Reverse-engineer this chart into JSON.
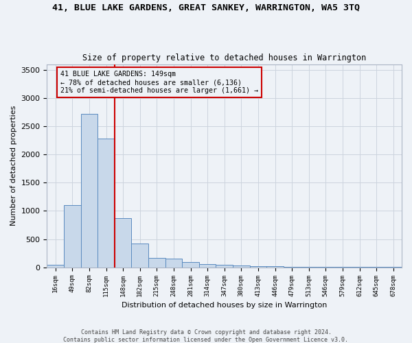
{
  "title": "41, BLUE LAKE GARDENS, GREAT SANKEY, WARRINGTON, WA5 3TQ",
  "subtitle": "Size of property relative to detached houses in Warrington",
  "xlabel": "Distribution of detached houses by size in Warrington",
  "ylabel": "Number of detached properties",
  "bar_values": [
    50,
    1100,
    2720,
    2280,
    870,
    420,
    165,
    155,
    90,
    60,
    50,
    30,
    20,
    15,
    10,
    5,
    5,
    5,
    5,
    5,
    3
  ],
  "bin_labels": [
    "16sqm",
    "49sqm",
    "82sqm",
    "115sqm",
    "148sqm",
    "182sqm",
    "215sqm",
    "248sqm",
    "281sqm",
    "314sqm",
    "347sqm",
    "380sqm",
    "413sqm",
    "446sqm",
    "479sqm",
    "513sqm",
    "546sqm",
    "579sqm",
    "612sqm",
    "645sqm",
    "678sqm"
  ],
  "bar_color": "#c8d8ea",
  "bar_edge_color": "#5a8abf",
  "vline_color": "#cc0000",
  "vline_x_index": 3.5,
  "annotation_line1": "41 BLUE LAKE GARDENS: 149sqm",
  "annotation_line2": "← 78% of detached houses are smaller (6,136)",
  "annotation_line3": "21% of semi-detached houses are larger (1,661) →",
  "ylim": [
    0,
    3600
  ],
  "yticks": [
    0,
    500,
    1000,
    1500,
    2000,
    2500,
    3000,
    3500
  ],
  "footer_text": "Contains HM Land Registry data © Crown copyright and database right 2024.\nContains public sector information licensed under the Open Government Licence v3.0.",
  "bg_color": "#eef2f7",
  "grid_color": "#ccd4de",
  "spine_color": "#aab4c4"
}
